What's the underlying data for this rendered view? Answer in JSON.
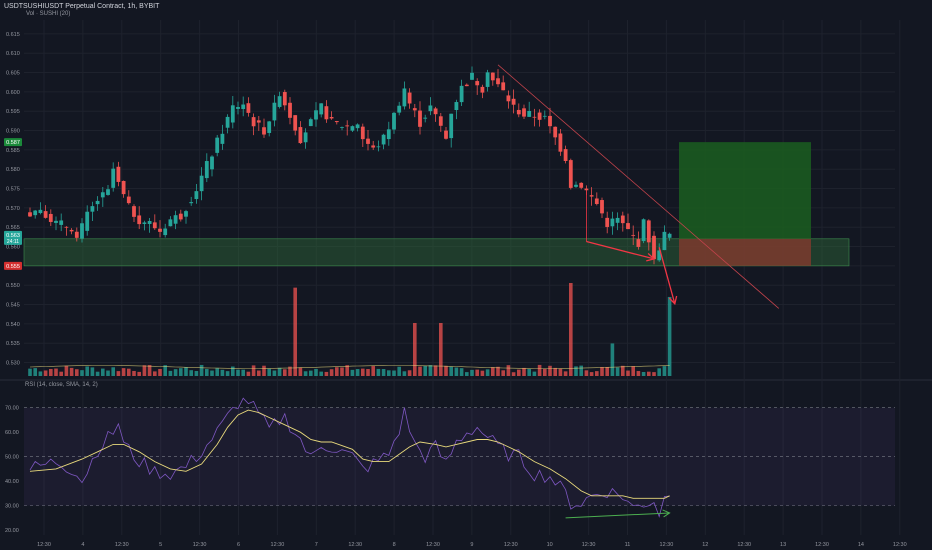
{
  "header": {
    "currency": "USDT",
    "title": "SUSHIUSDT Perpetual Contract, 1h, BYBIT",
    "volume_legend": "Vol · SUSHI (20)",
    "rsi_legend": "RSI (14, close, SMA, 14, 2)"
  },
  "price_badges": {
    "target": "0.587",
    "current": "0.563",
    "countdown": "24:11",
    "stop": "0.555"
  },
  "colors": {
    "background": "#131722",
    "up": "#26a69a",
    "down": "#ef5350",
    "rsi_line": "#7e57c2",
    "rsi_sma": "#e8d97c",
    "trendline": "#c2434b",
    "arrows": "#f23645",
    "divergence": "#4caf50",
    "target_zone": "#1b5e20",
    "stop_zone": "#7c3a2e",
    "support_zone": "#2e6b3a"
  },
  "chart_data": [
    {
      "type": "candlestick",
      "title": "SUSHIUSDT Perpetual Contract, 1h, BYBIT",
      "y_axis_ticks": [
        "0.615",
        "0.610",
        "0.605",
        "0.600",
        "0.595",
        "0.590",
        "0.585",
        "0.580",
        "0.575",
        "0.570",
        "0.565",
        "0.560",
        "0.555",
        "0.550",
        "0.545",
        "0.540",
        "0.535",
        "0.530"
      ],
      "ylim": [
        0.526,
        0.616
      ],
      "x_axis_ticks": [
        "12:30",
        "4",
        "12:30",
        "5",
        "12:30",
        "6",
        "12:30",
        "7",
        "12:30",
        "8",
        "12:30",
        "9",
        "12:30",
        "10",
        "12:30",
        "11",
        "12:30",
        "12",
        "12:30",
        "13",
        "12:30",
        "14",
        "12:30"
      ],
      "last_price": 0.563,
      "price_path": [
        [
          0,
          0.568
        ],
        [
          3,
          0.57
        ],
        [
          6,
          0.566
        ],
        [
          9,
          0.565
        ],
        [
          10,
          0.562
        ],
        [
          12,
          0.568
        ],
        [
          14,
          0.572
        ],
        [
          16,
          0.574
        ],
        [
          17,
          0.58
        ],
        [
          18,
          0.576
        ],
        [
          20,
          0.57
        ],
        [
          22,
          0.567
        ],
        [
          24,
          0.566
        ],
        [
          26,
          0.564
        ],
        [
          28,
          0.567
        ],
        [
          30,
          0.568
        ],
        [
          33,
          0.575
        ],
        [
          36,
          0.584
        ],
        [
          38,
          0.59
        ],
        [
          40,
          0.596
        ],
        [
          42,
          0.597
        ],
        [
          44,
          0.592
        ],
        [
          46,
          0.59
        ],
        [
          48,
          0.596
        ],
        [
          49,
          0.6
        ],
        [
          51,
          0.594
        ],
        [
          53,
          0.588
        ],
        [
          55,
          0.592
        ],
        [
          57,
          0.596
        ],
        [
          59,
          0.592
        ],
        [
          62,
          0.591
        ],
        [
          64,
          0.592
        ],
        [
          65,
          0.588
        ],
        [
          67,
          0.585
        ],
        [
          69,
          0.588
        ],
        [
          71,
          0.594
        ],
        [
          73,
          0.601
        ],
        [
          74,
          0.597
        ],
        [
          76,
          0.592
        ],
        [
          78,
          0.596
        ],
        [
          80,
          0.591
        ],
        [
          81,
          0.588
        ],
        [
          82,
          0.595
        ],
        [
          84,
          0.601
        ],
        [
          86,
          0.604
        ],
        [
          88,
          0.601
        ],
        [
          89,
          0.606
        ],
        [
          90,
          0.603
        ],
        [
          92,
          0.6
        ],
        [
          94,
          0.596
        ],
        [
          96,
          0.594
        ],
        [
          98,
          0.594
        ],
        [
          100,
          0.593
        ],
        [
          102,
          0.588
        ],
        [
          104,
          0.583
        ],
        [
          105,
          0.576
        ],
        [
          107,
          0.576
        ],
        [
          110,
          0.571
        ],
        [
          112,
          0.566
        ],
        [
          114,
          0.567
        ],
        [
          116,
          0.564
        ],
        [
          118,
          0.561
        ],
        [
          119,
          0.566
        ],
        [
          120,
          0.562
        ],
        [
          121,
          0.556
        ],
        [
          122,
          0.56
        ],
        [
          123,
          0.563
        ]
      ],
      "n_candles": 124,
      "drawings": {
        "trendline_from": [
          90,
          0.607
        ],
        "trendline_to": [
          144,
          0.544
        ],
        "support_zone": [
          0.555,
          0.562
        ],
        "target_zone": [
          0.562,
          0.587
        ],
        "stop_zone": [
          0.555,
          0.562
        ],
        "arrow_1_from": [
          107,
          0.5613
        ],
        "arrow_1_to": [
          120,
          0.5568
        ],
        "arrow_2_from": [
          121,
          0.5598
        ],
        "arrow_2_to": [
          124,
          0.5452
        ]
      }
    },
    {
      "type": "bar",
      "title": "Vol · SUSHI (20)",
      "note": "volume histogram overlaid at bottom of price pane",
      "spikes": [
        [
          51,
          0.95
        ],
        [
          74,
          0.57
        ],
        [
          79,
          0.57
        ],
        [
          104,
          1.0
        ],
        [
          112,
          0.35
        ],
        [
          123,
          0.85
        ]
      ]
    },
    {
      "type": "line",
      "title": "RSI (14, close, SMA, 14, 2)",
      "y_axis_ticks": [
        "70.00",
        "60.00",
        "50.00",
        "40.00",
        "30.00",
        "20.00"
      ],
      "ylim": [
        18,
        76
      ],
      "bands": [
        30,
        70
      ],
      "rsi_path": [
        [
          0,
          45
        ],
        [
          5,
          48
        ],
        [
          9,
          44
        ],
        [
          10,
          40
        ],
        [
          13,
          53
        ],
        [
          16,
          60
        ],
        [
          17,
          64
        ],
        [
          18,
          55
        ],
        [
          21,
          48
        ],
        [
          24,
          44
        ],
        [
          27,
          43
        ],
        [
          30,
          46
        ],
        [
          33,
          52
        ],
        [
          36,
          60
        ],
        [
          38,
          66
        ],
        [
          40,
          72
        ],
        [
          42,
          73
        ],
        [
          44,
          67
        ],
        [
          46,
          61
        ],
        [
          48,
          65
        ],
        [
          49,
          66
        ],
        [
          52,
          57
        ],
        [
          54,
          49
        ],
        [
          56,
          55
        ],
        [
          58,
          54
        ],
        [
          62,
          50
        ],
        [
          64,
          45
        ],
        [
          66,
          47
        ],
        [
          69,
          51
        ],
        [
          71,
          61
        ],
        [
          72,
          68
        ],
        [
          74,
          55
        ],
        [
          76,
          50
        ],
        [
          78,
          54
        ],
        [
          80,
          47
        ],
        [
          82,
          56
        ],
        [
          84,
          60
        ],
        [
          86,
          62
        ],
        [
          88,
          58
        ],
        [
          90,
          54
        ],
        [
          92,
          51
        ],
        [
          94,
          50
        ],
        [
          97,
          43
        ],
        [
          100,
          42
        ],
        [
          103,
          35
        ],
        [
          104,
          31
        ],
        [
          106,
          31
        ],
        [
          108,
          34
        ],
        [
          111,
          36
        ],
        [
          114,
          34
        ],
        [
          116,
          29
        ],
        [
          118,
          31
        ],
        [
          120,
          32
        ],
        [
          121,
          27
        ],
        [
          122,
          33
        ],
        [
          123,
          36
        ]
      ],
      "sma_path": [
        [
          0,
          44
        ],
        [
          5,
          45
        ],
        [
          10,
          49
        ],
        [
          13,
          52
        ],
        [
          16,
          55
        ],
        [
          18,
          55
        ],
        [
          21,
          52
        ],
        [
          24,
          48
        ],
        [
          27,
          45
        ],
        [
          30,
          44
        ],
        [
          33,
          47
        ],
        [
          36,
          55
        ],
        [
          38,
          62
        ],
        [
          40,
          67
        ],
        [
          42,
          69
        ],
        [
          44,
          68
        ],
        [
          46,
          66
        ],
        [
          49,
          63
        ],
        [
          52,
          60
        ],
        [
          54,
          57
        ],
        [
          56,
          56
        ],
        [
          58,
          56
        ],
        [
          62,
          53
        ],
        [
          64,
          49
        ],
        [
          66,
          48
        ],
        [
          69,
          48
        ],
        [
          71,
          51
        ],
        [
          73,
          54
        ],
        [
          75,
          56
        ],
        [
          78,
          55
        ],
        [
          80,
          54
        ],
        [
          82,
          55
        ],
        [
          84,
          56
        ],
        [
          86,
          57
        ],
        [
          88,
          57
        ],
        [
          90,
          56
        ],
        [
          92,
          54
        ],
        [
          94,
          52
        ],
        [
          97,
          48
        ],
        [
          100,
          45
        ],
        [
          103,
          41
        ],
        [
          106,
          36
        ],
        [
          108,
          34
        ],
        [
          111,
          34
        ],
        [
          114,
          34
        ],
        [
          116,
          33
        ],
        [
          118,
          33
        ],
        [
          120,
          33
        ],
        [
          122,
          33
        ],
        [
          123,
          34
        ]
      ],
      "divergence_from": [
        103,
        25
      ],
      "divergence_to": [
        123,
        27
      ]
    }
  ]
}
